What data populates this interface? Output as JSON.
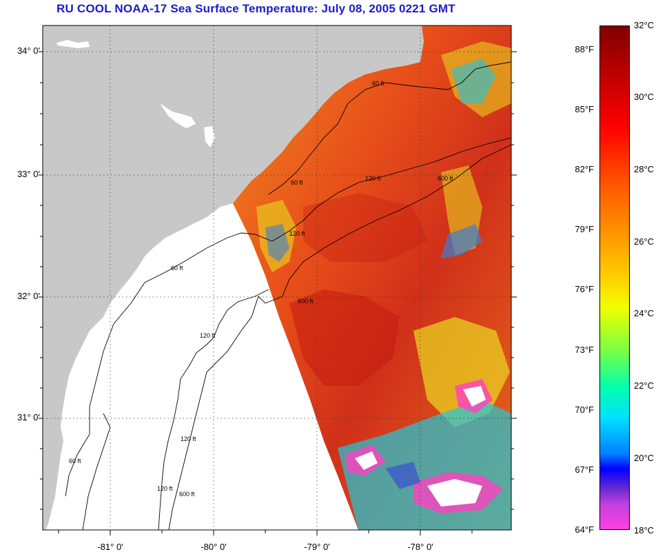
{
  "title": "RU COOL  NOAA-17  Sea Surface Temperature:  July 08, 2005 0221 GMT",
  "latitude_labels": [
    "34° 0'",
    "33° 0'",
    "32° 0'",
    "31° 0'"
  ],
  "longitude_labels": [
    "-81° 0'",
    "-80° 0'",
    "-79° 0'",
    "-78° 0'"
  ],
  "depth_contour_labels": [
    "60 ft",
    "120 ft",
    "600 ft"
  ],
  "colorbar": {
    "fahrenheit_labels": [
      "88°F",
      "85°F",
      "82°F",
      "79°F",
      "76°F",
      "73°F",
      "70°F",
      "67°F",
      "64°F"
    ],
    "celsius_labels": [
      "32°C",
      "30°C",
      "28°C",
      "26°C",
      "24°C",
      "22°C",
      "20°C",
      "18°C"
    ],
    "range_c": [
      18,
      32
    ]
  },
  "colors": {
    "title": "#1a1acc",
    "land": "#c8c8c8",
    "water_base": "#e8501a",
    "warm_core": "#c41a10",
    "cool_patch": "#e8d020",
    "cold_patch": "#3a80d0",
    "clouds": "#ffffff"
  }
}
